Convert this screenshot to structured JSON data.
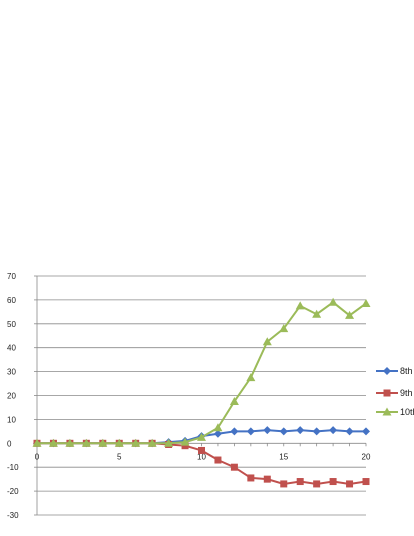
{
  "chart_data": {
    "type": "line",
    "title": "",
    "xlabel": "",
    "ylabel": "",
    "xlim": [
      0,
      20
    ],
    "ylim": [
      -30,
      70
    ],
    "x_ticks": [
      0,
      5,
      10,
      15,
      20
    ],
    "y_ticks": [
      -30,
      -20,
      -10,
      0,
      10,
      20,
      30,
      40,
      50,
      60,
      70
    ],
    "grid": "horizontal",
    "legend_position": "right",
    "x": [
      0,
      1,
      2,
      3,
      4,
      5,
      6,
      7,
      8,
      9,
      10,
      11,
      12,
      13,
      14,
      15,
      16,
      17,
      18,
      19,
      20
    ],
    "series": [
      {
        "name": "8th",
        "color": "#4472C4",
        "marker": "diamond",
        "values": [
          0,
          0,
          0,
          0,
          0,
          0,
          0,
          0,
          0.5,
          1,
          3,
          4,
          5,
          5,
          5.5,
          5,
          5.5,
          5,
          5.5,
          5,
          5
        ]
      },
      {
        "name": "9th",
        "color": "#C0504D",
        "marker": "square",
        "values": [
          0,
          0,
          0,
          0,
          0,
          0,
          0,
          0,
          -0.5,
          -1,
          -3,
          -7,
          -10,
          -14.5,
          -15,
          -17,
          -16,
          -17,
          -16,
          -17,
          -16
        ]
      },
      {
        "name": "10th",
        "color": "#9BBB59",
        "marker": "triangle",
        "values": [
          0,
          0,
          0,
          0,
          0,
          0,
          0,
          0,
          0,
          0.5,
          2.5,
          6.5,
          17.5,
          27.5,
          42.5,
          48,
          57.5,
          54,
          59,
          53.5,
          58.5
        ]
      }
    ]
  }
}
